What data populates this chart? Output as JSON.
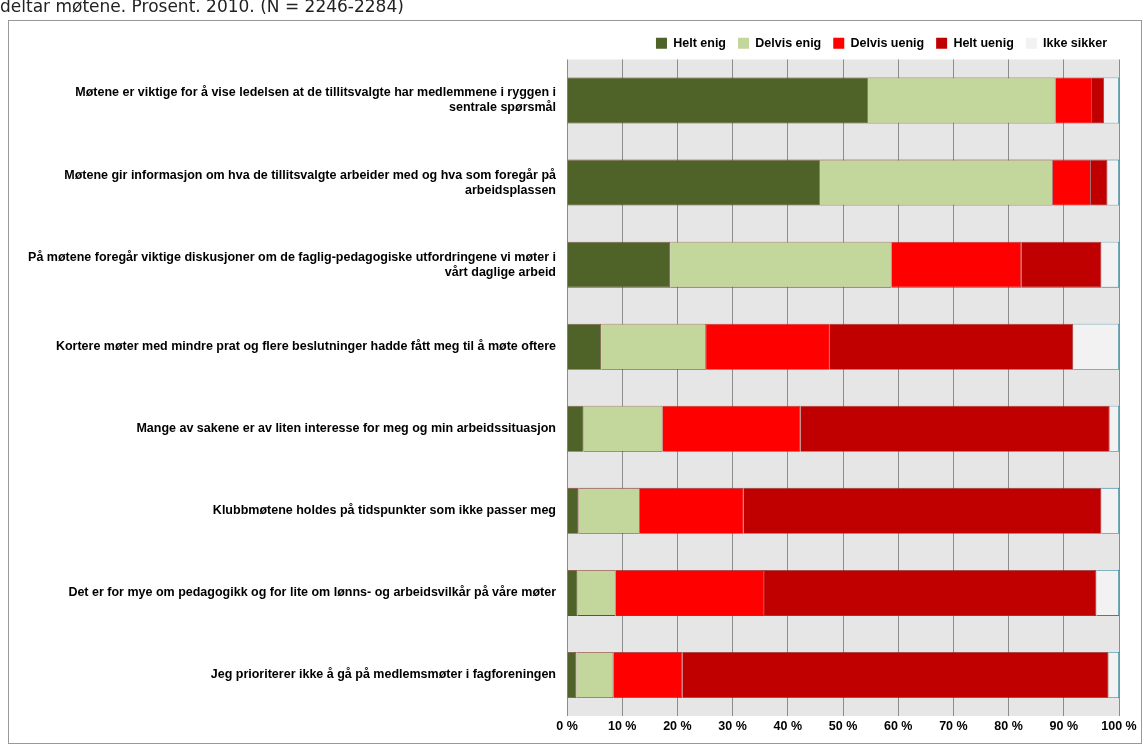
{
  "chart_data": {
    "type": "bar",
    "orientation": "horizontal",
    "stacked": true,
    "title": "deltar møtene. Prosent. 2010. (N = 2246-2284)",
    "categories": [
      "Møtene er viktige for å vise ledelsen at de tillitsvalgte har medlemmene i ryggen i sentrale spørsmål",
      "Møtene gir informasjon om hva de tillitsvalgte arbeider med og hva som foregår på arbeidsplassen",
      "På møtene foregår viktige diskusjoner om de faglig-pedagogiske utfordringene vi møter i vårt daglige arbeid",
      "Kortere møter med mindre prat og flere beslutninger hadde fått meg til å møte oftere",
      "Mange av sakene er av liten interesse for meg og min arbeidssituasjon",
      "Klubbmøtene holdes på tidspunkter som ikke passer meg",
      "Det er for mye om pedagogikk og for lite om lønns- og arbeidsvilkår på våre møter",
      "Jeg prioriterer ikke å gå på medlemsmøter i fagforeningen"
    ],
    "series": [
      {
        "name": "Helt enig",
        "color": "#4f6228",
        "values": [
          54.5,
          45.8,
          18.7,
          6.2,
          3.0,
          2.1,
          1.9,
          1.7
        ]
      },
      {
        "name": "Delvis enig",
        "color": "#c3d69b",
        "values": [
          34.0,
          42.2,
          40.1,
          19.0,
          14.3,
          11.1,
          6.9,
          6.7
        ]
      },
      {
        "name": "Delvis uenig",
        "color": "#ff0000",
        "values": [
          6.6,
          6.9,
          23.5,
          22.4,
          25.0,
          18.8,
          26.9,
          12.5
        ]
      },
      {
        "name": "Helt uenig",
        "color": "#c00000",
        "values": [
          2.2,
          3.0,
          14.5,
          44.1,
          56.0,
          64.8,
          60.2,
          77.2
        ]
      },
      {
        "name": "Ikke sikker",
        "color": "#f2f2f2",
        "values": [
          2.7,
          2.1,
          3.2,
          8.3,
          1.7,
          3.2,
          4.1,
          1.9
        ]
      }
    ],
    "xlim": [
      0,
      100
    ],
    "xticks": [
      {
        "value": 0,
        "label": "0 %"
      },
      {
        "value": 10,
        "label": "10 %"
      },
      {
        "value": 20,
        "label": "20 %"
      },
      {
        "value": 30,
        "label": "30 %"
      },
      {
        "value": 40,
        "label": "40 %"
      },
      {
        "value": 50,
        "label": "50 %"
      },
      {
        "value": 60,
        "label": "60 %"
      },
      {
        "value": 70,
        "label": "70 %"
      },
      {
        "value": 80,
        "label": "80 %"
      },
      {
        "value": 90,
        "label": "90 %"
      },
      {
        "value": 100,
        "label": "100 %"
      }
    ],
    "grid": "x",
    "legend": "top"
  }
}
